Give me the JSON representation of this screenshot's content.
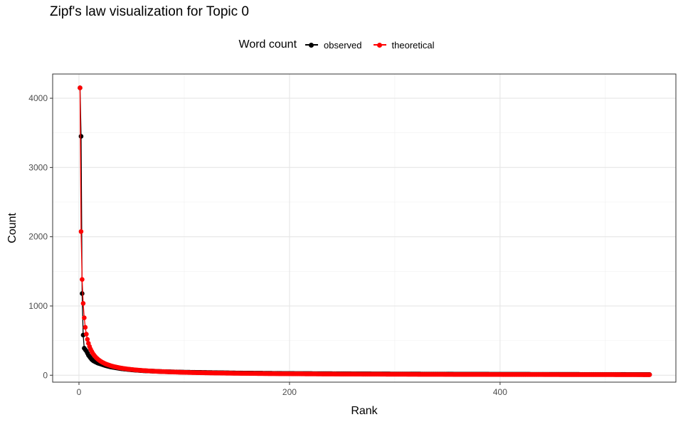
{
  "chart_data": {
    "type": "line",
    "title": "Zipf's law visualization for Topic 0",
    "xlabel": "Rank",
    "ylabel": "Count",
    "xlim": [
      -25,
      567
    ],
    "ylim": [
      -100,
      4350
    ],
    "x_ticks": [
      0,
      200,
      400
    ],
    "x_tick_labels": [
      "0",
      "200",
      "400"
    ],
    "y_ticks": [
      0,
      1000,
      2000,
      3000,
      4000
    ],
    "y_tick_labels": [
      "0",
      "1000",
      "2000",
      "3000",
      "4000"
    ],
    "grid": true,
    "legend": {
      "title": "Word count",
      "position": "top",
      "entries": [
        "observed",
        "theoretical"
      ]
    },
    "n_points": 542,
    "series": [
      {
        "name": "observed",
        "color": "#000000",
        "points": [
          [
            1,
            4150
          ],
          [
            2,
            3450
          ],
          [
            3,
            1180
          ],
          [
            4,
            580
          ],
          [
            5,
            390
          ],
          [
            6,
            370
          ],
          [
            7,
            350
          ],
          [
            8,
            320
          ],
          [
            9,
            290
          ],
          [
            10,
            270
          ],
          [
            12,
            230
          ],
          [
            14,
            205
          ],
          [
            16,
            190
          ],
          [
            18,
            175
          ],
          [
            20,
            165
          ],
          [
            25,
            140
          ],
          [
            30,
            120
          ],
          [
            40,
            95
          ],
          [
            50,
            78
          ],
          [
            60,
            66
          ],
          [
            80,
            52
          ],
          [
            100,
            44
          ],
          [
            150,
            32
          ],
          [
            200,
            25
          ],
          [
            300,
            18
          ],
          [
            400,
            14
          ],
          [
            542,
            10
          ]
        ]
      },
      {
        "name": "theoretical",
        "color": "#ff0000",
        "model": "y = 4150 / rank",
        "y1": 4150
      }
    ]
  }
}
